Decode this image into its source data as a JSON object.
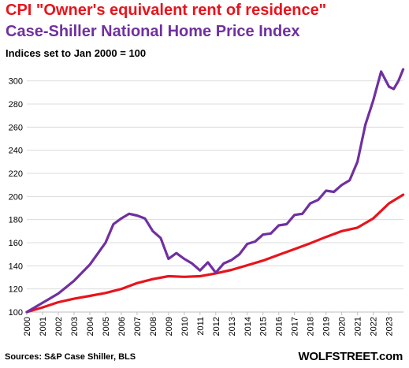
{
  "header": {
    "title_line1": "CPI \"Owner's equivalent rent of residence\"",
    "title_line2": "Case-Shiller  National  Home Price Index",
    "subtitle": "Indices set to Jan 2000 = 100"
  },
  "footer": {
    "source": "Sources: S&P Case Shiller, BLS",
    "brand": "WOLFSTREET.com"
  },
  "chart_data": {
    "type": "line",
    "ylim": [
      100,
      310
    ],
    "yticks": [
      100,
      120,
      140,
      160,
      180,
      200,
      220,
      240,
      260,
      280,
      300
    ],
    "xlim": [
      2000,
      2023.92
    ],
    "xticks": [
      "2000",
      "2001",
      "2002",
      "2003",
      "2004",
      "2005",
      "2006",
      "2007",
      "2008",
      "2009",
      "2010",
      "2011",
      "2012",
      "2013",
      "2014",
      "2015",
      "2016",
      "2017",
      "2018",
      "2019",
      "2020",
      "2021",
      "2022",
      "2023"
    ],
    "grid": true,
    "series": [
      {
        "name": "CPI \"Owner's equivalent rent of residence\"",
        "color": "#e8141c",
        "points": [
          [
            2000,
            100
          ],
          [
            2001,
            104
          ],
          [
            2002,
            108.5
          ],
          [
            2003,
            111.5
          ],
          [
            2004,
            114
          ],
          [
            2005,
            116.5
          ],
          [
            2006,
            120
          ],
          [
            2007,
            125
          ],
          [
            2008,
            128.5
          ],
          [
            2009,
            131
          ],
          [
            2010,
            130.5
          ],
          [
            2011,
            131
          ],
          [
            2012,
            133.5
          ],
          [
            2013,
            136.5
          ],
          [
            2014,
            140.5
          ],
          [
            2015,
            144.5
          ],
          [
            2016,
            149.5
          ],
          [
            2017,
            154.5
          ],
          [
            2018,
            159.5
          ],
          [
            2019,
            165
          ],
          [
            2020,
            170
          ],
          [
            2021,
            173
          ],
          [
            2022,
            181
          ],
          [
            2023,
            194
          ],
          [
            2023.9,
            201.5
          ]
        ]
      },
      {
        "name": "Case-Shiller  National  Home Price Index",
        "color": "#7030a0",
        "points": [
          [
            2000,
            100
          ],
          [
            2001,
            108
          ],
          [
            2002,
            116
          ],
          [
            2003,
            127
          ],
          [
            2004,
            141
          ],
          [
            2005,
            160
          ],
          [
            2005.5,
            176
          ],
          [
            2006,
            181
          ],
          [
            2006.5,
            185
          ],
          [
            2007,
            183.5
          ],
          [
            2007.5,
            181
          ],
          [
            2008,
            170
          ],
          [
            2008.5,
            164
          ],
          [
            2009,
            146
          ],
          [
            2009.5,
            151
          ],
          [
            2010,
            146
          ],
          [
            2010.5,
            142
          ],
          [
            2011,
            136
          ],
          [
            2011.5,
            143
          ],
          [
            2012,
            134
          ],
          [
            2012.5,
            142
          ],
          [
            2013,
            145
          ],
          [
            2013.5,
            150
          ],
          [
            2014,
            159
          ],
          [
            2014.5,
            161
          ],
          [
            2015,
            167
          ],
          [
            2015.5,
            168
          ],
          [
            2016,
            175
          ],
          [
            2016.5,
            176
          ],
          [
            2017,
            184
          ],
          [
            2017.5,
            185
          ],
          [
            2018,
            194
          ],
          [
            2018.5,
            197
          ],
          [
            2019,
            205
          ],
          [
            2019.5,
            204
          ],
          [
            2020,
            210
          ],
          [
            2020.5,
            214
          ],
          [
            2021,
            230
          ],
          [
            2021.5,
            262
          ],
          [
            2022,
            283
          ],
          [
            2022.5,
            308
          ],
          [
            2023,
            295
          ],
          [
            2023.3,
            293
          ],
          [
            2023.6,
            300
          ],
          [
            2023.9,
            310
          ]
        ]
      }
    ]
  }
}
